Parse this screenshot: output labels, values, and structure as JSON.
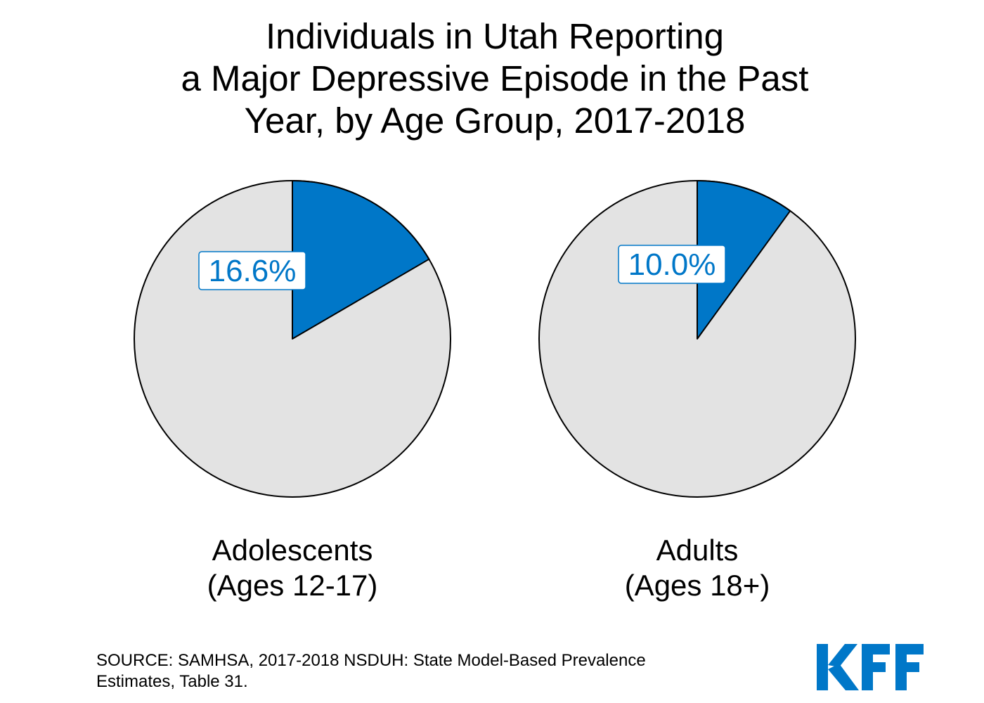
{
  "title_lines": [
    "Individuals in Utah Reporting",
    "a Major Depressive Episode in the Past",
    "Year, by Age Group, 2017-2018"
  ],
  "chart_data": [
    {
      "type": "pie",
      "category_lines": [
        "Adolescents",
        "(Ages 12-17)"
      ],
      "value": 16.6,
      "label": "16.6%",
      "slices": [
        {
          "name": "16.6%",
          "value": 16.6,
          "color": "#0077C8"
        },
        {
          "name": "",
          "value": 83.4,
          "color": "#E3E3E3"
        }
      ]
    },
    {
      "type": "pie",
      "category_lines": [
        "Adults",
        "(Ages 18+)"
      ],
      "value": 10.0,
      "label": "10.0%",
      "slices": [
        {
          "name": "10.0%",
          "value": 10.0,
          "color": "#0077C8"
        },
        {
          "name": "",
          "value": 90.0,
          "color": "#E3E3E3"
        }
      ]
    }
  ],
  "source_lines": [
    "SOURCE: SAMHSA, 2017-2018 NSDUH: State Model-Based Prevalence",
    "Estimates, Table 31."
  ],
  "logo": {
    "text": "KFF",
    "color": "#0077C8"
  },
  "colors": {
    "highlight": "#0077C8",
    "remainder": "#E3E3E3",
    "outline": "#000000"
  }
}
